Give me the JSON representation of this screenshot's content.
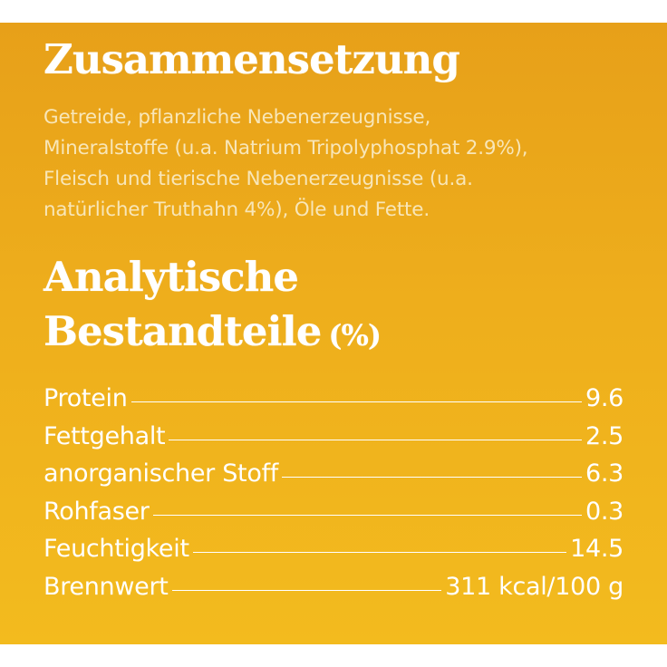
{
  "composition": {
    "title": "Zusammensetzung",
    "lines": [
      "Getreide, pflanzliche Nebenerzeugnisse,",
      "Mineralstoffe (u.a. Natrium Tripolyphosphat 2.9%),",
      "Fleisch und tierische Nebenerzeugnisse (u.a.",
      "natürlicher Truthahn 4%), Öle und Fette."
    ]
  },
  "analytics": {
    "title_line1": "Analytische",
    "title_line2": "Bestandteile",
    "title_unit": "(%)",
    "rows": [
      {
        "label": "Protein",
        "value": "9.6"
      },
      {
        "label": "Fettgehalt",
        "value": "2.5"
      },
      {
        "label": "anorganischer Stoff",
        "value": "6.3"
      },
      {
        "label": "Rohfaser",
        "value": "0.3"
      },
      {
        "label": "Feuchtigkeit",
        "value": "14.5"
      },
      {
        "label": "Brennwert",
        "value": "311 kcal/100 g"
      }
    ]
  },
  "colors": {
    "background_top": "#e7a019",
    "background_bottom": "#f3bb1e",
    "heading": "#ffffff",
    "body_text": "#f8e6b8"
  }
}
